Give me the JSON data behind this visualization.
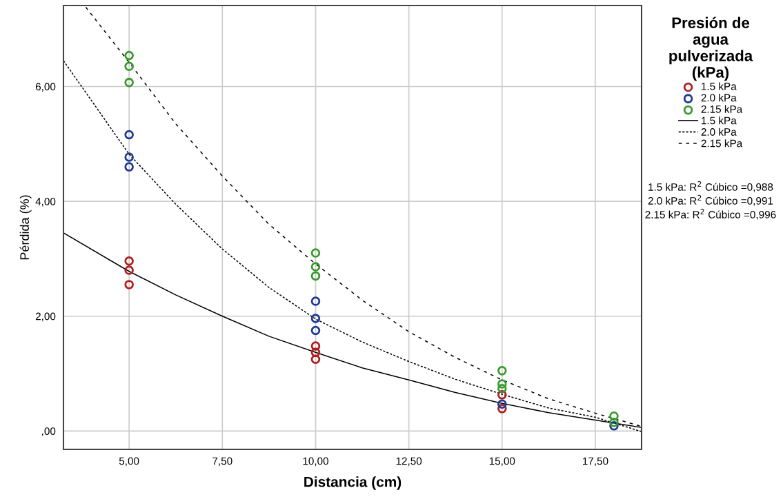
{
  "chart_data": {
    "type": "scatter",
    "xlabel": "Distancia (cm)",
    "ylabel": "Pérdida (%)",
    "legend_title": "Presión de\nagua\npulverizada\n(kPa)",
    "legend": "right",
    "grid": true,
    "marker": "circle",
    "xlim": [
      3.24,
      18.74
    ],
    "xticks": [
      {
        "value": 5,
        "label": "5,00"
      },
      {
        "value": 7.5,
        "label": "7,50"
      },
      {
        "value": 10,
        "label": "10,00"
      },
      {
        "value": 12.5,
        "label": "12,50"
      },
      {
        "value": 15,
        "label": "15,00"
      },
      {
        "value": 17.5,
        "label": "17,50"
      }
    ],
    "ylim": [
      -0.32,
      7.41
    ],
    "yticks": [
      {
        "value": 0,
        "label": ",00"
      },
      {
        "value": 2,
        "label": "2,00"
      },
      {
        "value": 4,
        "label": "4,00"
      },
      {
        "value": 6,
        "label": "6,00"
      }
    ],
    "series": [
      {
        "name": "1.5 kPa",
        "color": "#b01e1e",
        "x": [
          5,
          5,
          5,
          10,
          10,
          10,
          15,
          15
        ],
        "values": [
          2.96,
          2.8,
          2.55,
          1.48,
          1.37,
          1.25,
          0.63,
          0.39
        ]
      },
      {
        "name": "2.0 kPa",
        "color": "#1f3a93",
        "x": [
          5,
          5,
          5,
          10,
          10,
          10,
          15,
          18
        ],
        "values": [
          5.16,
          4.77,
          4.6,
          2.26,
          1.96,
          1.75,
          0.47,
          0.09
        ]
      },
      {
        "name": "2.15 kPa",
        "color": "#3a9a2e",
        "x": [
          5,
          5,
          5,
          10,
          10,
          10,
          15,
          15,
          15,
          18,
          18
        ],
        "values": [
          6.54,
          6.35,
          6.07,
          3.1,
          2.86,
          2.7,
          1.05,
          0.82,
          0.74,
          0.26,
          0.15
        ]
      },
      {
        "name": "1.5 kPa",
        "type": "line",
        "color": "#000000",
        "line_style": "solid",
        "marker": "none",
        "x": [
          3.24,
          5,
          6.25,
          7.5,
          8.75,
          10,
          11.25,
          12.5,
          13.75,
          15,
          16.25,
          17.5,
          18.74
        ],
        "values": [
          3.45,
          2.78,
          2.37,
          2.0,
          1.65,
          1.37,
          1.1,
          0.89,
          0.67,
          0.48,
          0.32,
          0.19,
          0.06
        ]
      },
      {
        "name": "2.0 kPa",
        "type": "line",
        "color": "#000000",
        "line_style": "dotted",
        "marker": "none",
        "x": [
          3.24,
          5,
          6.25,
          7.5,
          8.75,
          10,
          11.25,
          12.5,
          13.75,
          15,
          16.25,
          17.5,
          18.74
        ],
        "values": [
          6.45,
          4.82,
          3.95,
          3.17,
          2.5,
          1.95,
          1.55,
          1.21,
          0.9,
          0.64,
          0.4,
          0.24,
          -0.01
        ]
      },
      {
        "name": "2.15 kPa",
        "type": "line",
        "color": "#000000",
        "line_style": "dashed",
        "marker": "none",
        "x": [
          3.84,
          5,
          6.25,
          7.5,
          8.75,
          10,
          11.25,
          12.5,
          13.75,
          15,
          16.25,
          17.5,
          18.74
        ],
        "values": [
          7.38,
          6.42,
          5.35,
          4.44,
          3.6,
          2.91,
          2.28,
          1.73,
          1.28,
          0.89,
          0.56,
          0.31,
          0.08
        ]
      }
    ],
    "annotations": [
      "1.5 kPa: R$^{2}$ Cúbico =0,988",
      "2.0 kPa: R$^{2}$ Cúbico =0,991",
      "2.15 kPa: R$^{2}$ Cúbico =0,996"
    ]
  }
}
